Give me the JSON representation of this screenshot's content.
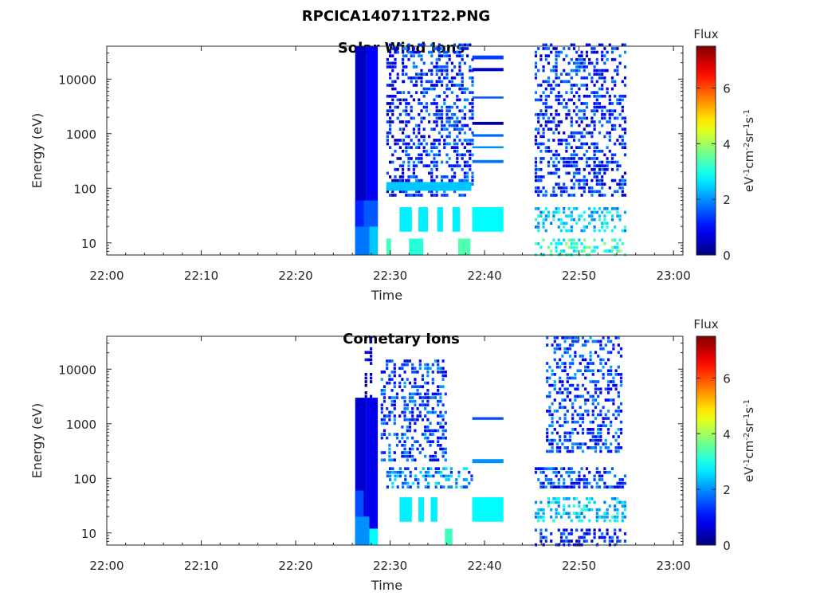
{
  "figure": {
    "title_line1": "RPCICA140711T22.PNG"
  },
  "chart_data": [
    {
      "type": "heatmap",
      "title": "Solar Wind Ions",
      "xlabel": "Time",
      "ylabel": "Energy (eV)",
      "y_scale": "log",
      "x_ticks": [
        "22:00",
        "22:10",
        "22:20",
        "22:30",
        "22:40",
        "22:50",
        "23:00"
      ],
      "y_ticks": [
        "10",
        "100",
        "1000",
        "10000"
      ],
      "xlim_minutes": [
        0,
        61
      ],
      "ylim": [
        6,
        40000
      ],
      "colorbar": {
        "title": "Flux",
        "label_base": "eV",
        "label_exponents": [
          "-1",
          "-2",
          "-1",
          "-1"
        ],
        "label_units": [
          "cm",
          "sr",
          "s"
        ],
        "range": [
          0,
          7.5
        ],
        "ticks": [
          "0",
          "2",
          "4",
          "6"
        ],
        "colormap": "jet"
      },
      "blocks": [
        {
          "t0": 26.3,
          "t1": 27.5,
          "e0": 6,
          "e1": 40000,
          "v": 0.5
        },
        {
          "t0": 27.5,
          "t1": 28.7,
          "e0": 6,
          "e1": 40000,
          "v": 0.9
        },
        {
          "t0": 26.3,
          "t1": 27.8,
          "e0": 6,
          "e1": 20,
          "v": 1.8
        },
        {
          "t0": 27.8,
          "t1": 28.7,
          "e0": 6,
          "e1": 20,
          "v": 2.4
        },
        {
          "t0": 26.3,
          "t1": 27.2,
          "e0": 20,
          "e1": 60,
          "v": 1.2
        },
        {
          "t0": 27.2,
          "t1": 28.7,
          "e0": 20,
          "e1": 60,
          "v": 1.6
        },
        {
          "t0": 29.6,
          "t1": 31.3,
          "e0": 70,
          "e1": 45000,
          "v": 0.9,
          "scatter": true
        },
        {
          "t0": 31.3,
          "t1": 38.6,
          "e0": 70,
          "e1": 45000,
          "v": 1.3,
          "scatter": true
        },
        {
          "t0": 29.6,
          "t1": 38.6,
          "e0": 90,
          "e1": 130,
          "v": 2.4
        },
        {
          "t0": 29.6,
          "t1": 30.1,
          "e0": 6,
          "e1": 12,
          "v": 3.3
        },
        {
          "t0": 32.0,
          "t1": 33.5,
          "e0": 6,
          "e1": 12,
          "v": 3.1
        },
        {
          "t0": 37.2,
          "t1": 38.5,
          "e0": 6,
          "e1": 12,
          "v": 3.4
        },
        {
          "t0": 31.0,
          "t1": 32.3,
          "e0": 16,
          "e1": 45,
          "v": 2.7
        },
        {
          "t0": 33.0,
          "t1": 34.0,
          "e0": 16,
          "e1": 45,
          "v": 2.7
        },
        {
          "t0": 35.0,
          "t1": 35.6,
          "e0": 16,
          "e1": 45,
          "v": 2.7
        },
        {
          "t0": 36.6,
          "t1": 37.4,
          "e0": 16,
          "e1": 45,
          "v": 2.7
        },
        {
          "t0": 38.7,
          "t1": 42.0,
          "e0": 16,
          "e1": 45,
          "v": 2.8
        },
        {
          "t0": 38.7,
          "t1": 42.0,
          "e0": 23000,
          "e1": 27000,
          "v": 1.4
        },
        {
          "t0": 38.7,
          "t1": 42.0,
          "e0": 14000,
          "e1": 16000,
          "v": 0.6
        },
        {
          "t0": 38.7,
          "t1": 42.0,
          "e0": 1450,
          "e1": 1650,
          "v": 0.3
        },
        {
          "t0": 38.7,
          "t1": 42.0,
          "e0": 880,
          "e1": 980,
          "v": 1.7
        },
        {
          "t0": 38.7,
          "t1": 42.0,
          "e0": 540,
          "e1": 590,
          "v": 2.0
        },
        {
          "t0": 38.7,
          "t1": 42.0,
          "e0": 290,
          "e1": 330,
          "v": 1.8
        },
        {
          "t0": 38.7,
          "t1": 42.0,
          "e0": 4400,
          "e1": 4800,
          "v": 1.6
        },
        {
          "t0": 45.3,
          "t1": 54.8,
          "e0": 70,
          "e1": 45000,
          "v": 1.2,
          "scatter": true
        },
        {
          "t0": 45.3,
          "t1": 54.8,
          "e0": 16,
          "e1": 45,
          "v": 2.5,
          "scatter": true
        },
        {
          "t0": 45.3,
          "t1": 54.8,
          "e0": 6,
          "e1": 12,
          "v": 3.2,
          "scatter": true
        }
      ]
    },
    {
      "type": "heatmap",
      "title": "Cometary Ions",
      "xlabel": "Time",
      "ylabel": "Energy (eV)",
      "y_scale": "log",
      "x_ticks": [
        "22:00",
        "22:10",
        "22:20",
        "22:30",
        "22:40",
        "22:50",
        "23:00"
      ],
      "y_ticks": [
        "10",
        "100",
        "1000",
        "10000"
      ],
      "xlim_minutes": [
        0,
        61
      ],
      "ylim": [
        6,
        40000
      ],
      "colorbar": {
        "title": "Flux",
        "label_base": "eV",
        "label_exponents": [
          "-1",
          "-2",
          "-1",
          "-1"
        ],
        "label_units": [
          "cm",
          "sr",
          "s"
        ],
        "range": [
          0,
          7.5
        ],
        "ticks": [
          "0",
          "2",
          "4",
          "6"
        ],
        "colormap": "jet"
      },
      "blocks": [
        {
          "t0": 26.3,
          "t1": 27.5,
          "e0": 6,
          "e1": 3000,
          "v": 0.6
        },
        {
          "t0": 27.5,
          "t1": 28.7,
          "e0": 6,
          "e1": 3000,
          "v": 0.8
        },
        {
          "t0": 27.3,
          "t1": 28.0,
          "e0": 3000,
          "e1": 40000,
          "v": 0.3,
          "scatter": true
        },
        {
          "t0": 26.3,
          "t1": 27.8,
          "e0": 6,
          "e1": 20,
          "v": 2.0
        },
        {
          "t0": 27.8,
          "t1": 28.7,
          "e0": 6,
          "e1": 12,
          "v": 2.8
        },
        {
          "t0": 26.3,
          "t1": 27.2,
          "e0": 20,
          "e1": 60,
          "v": 1.5
        },
        {
          "t0": 29.0,
          "t1": 36.0,
          "e0": 200,
          "e1": 15000,
          "v": 1.4,
          "scatter": true
        },
        {
          "t0": 29.6,
          "t1": 38.6,
          "e0": 70,
          "e1": 160,
          "v": 1.9,
          "scatter": true
        },
        {
          "t0": 31.0,
          "t1": 32.3,
          "e0": 16,
          "e1": 45,
          "v": 2.7
        },
        {
          "t0": 33.0,
          "t1": 33.6,
          "e0": 16,
          "e1": 45,
          "v": 2.7
        },
        {
          "t0": 34.3,
          "t1": 35.0,
          "e0": 16,
          "e1": 45,
          "v": 2.7
        },
        {
          "t0": 38.7,
          "t1": 42.0,
          "e0": 16,
          "e1": 45,
          "v": 2.8
        },
        {
          "t0": 38.7,
          "t1": 42.0,
          "e0": 190,
          "e1": 225,
          "v": 2.0
        },
        {
          "t0": 38.7,
          "t1": 42.0,
          "e0": 1180,
          "e1": 1320,
          "v": 1.5
        },
        {
          "t0": 35.8,
          "t1": 36.6,
          "e0": 6,
          "e1": 12,
          "v": 3.3
        },
        {
          "t0": 45.3,
          "t1": 54.8,
          "e0": 70,
          "e1": 160,
          "v": 1.4,
          "scatter": true
        },
        {
          "t0": 45.3,
          "t1": 54.8,
          "e0": 16,
          "e1": 45,
          "v": 2.5,
          "scatter": true
        },
        {
          "t0": 45.3,
          "t1": 54.8,
          "e0": 6,
          "e1": 12,
          "v": 1.2,
          "scatter": true
        },
        {
          "t0": 46.5,
          "t1": 54.5,
          "e0": 300,
          "e1": 40000,
          "v": 1.4,
          "scatter": true
        }
      ]
    }
  ]
}
